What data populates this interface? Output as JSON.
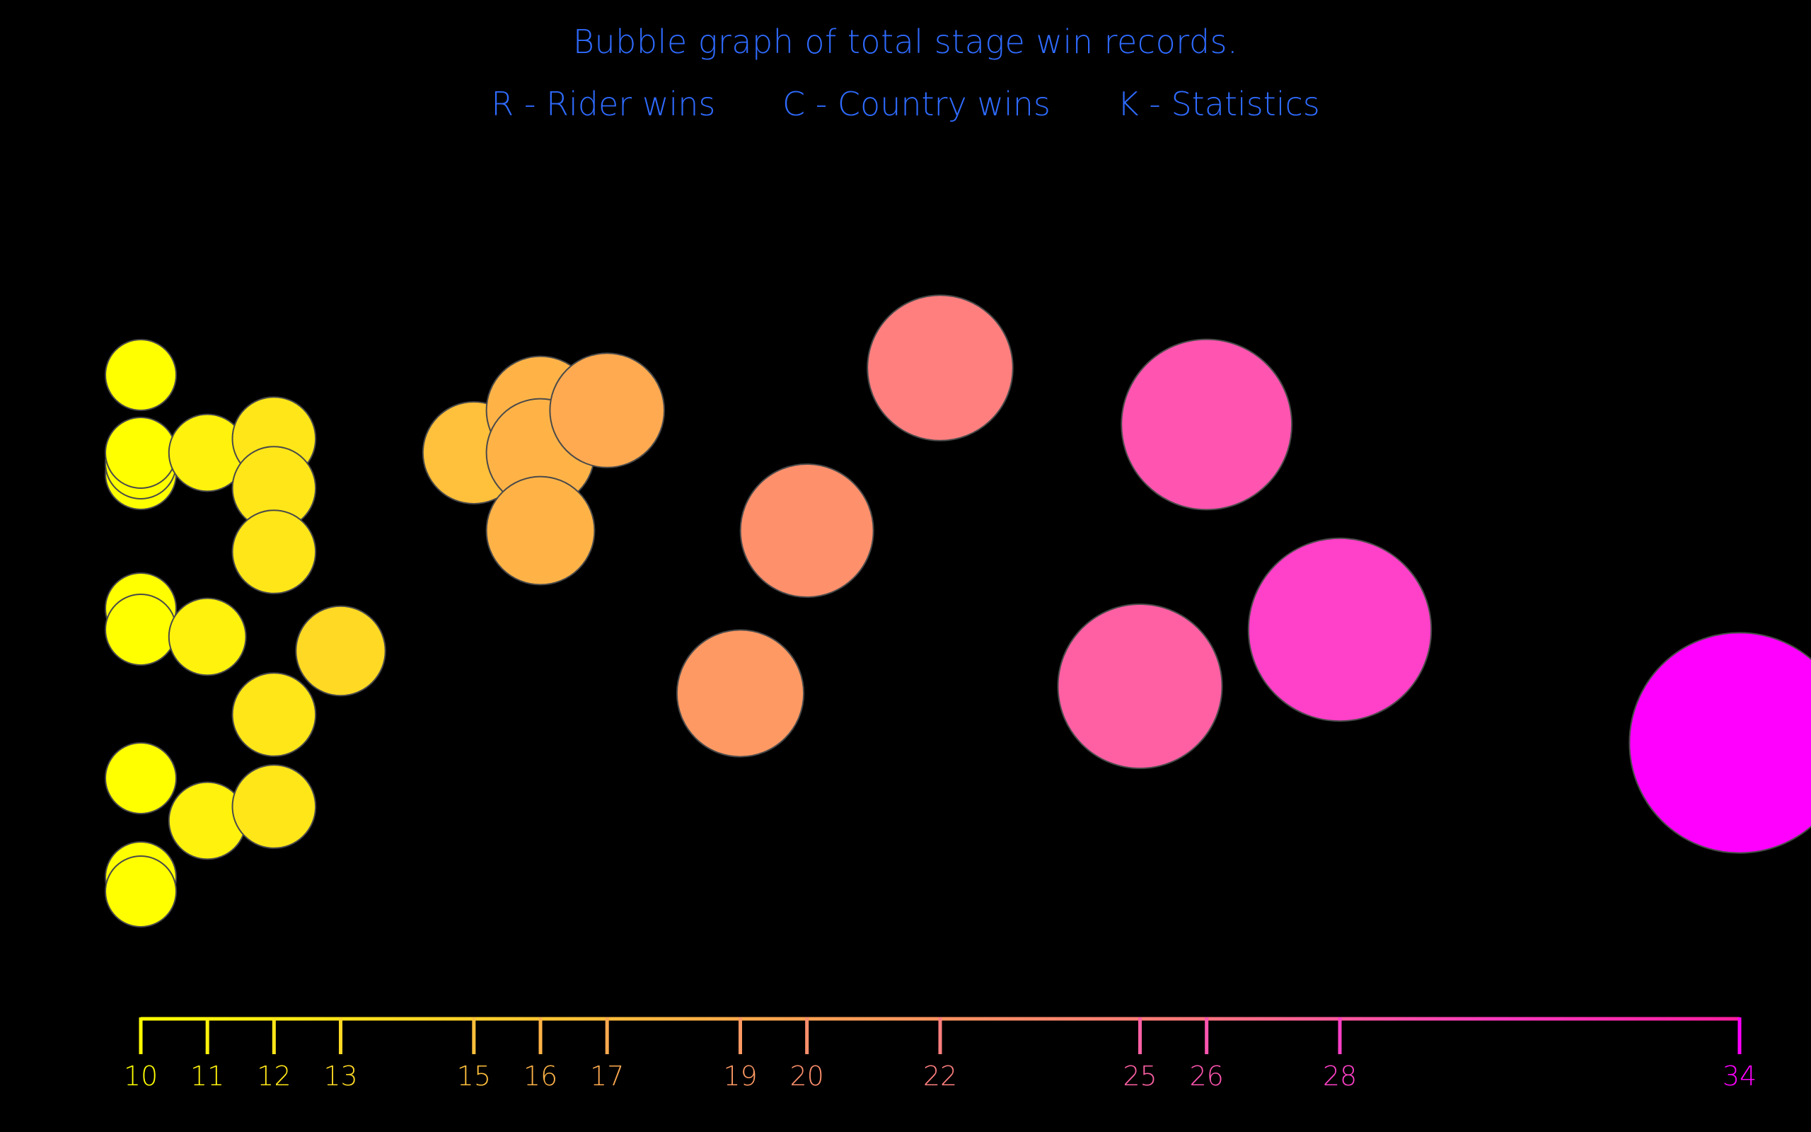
{
  "chart_data": {
    "type": "scatter",
    "title": "Bubble graph of total stage win records.",
    "legend": [
      {
        "key": "R",
        "label": "R - Rider wins"
      },
      {
        "key": "C",
        "label": "C - Country wins"
      },
      {
        "key": "K",
        "label": "K - Statistics"
      }
    ],
    "xlabel": "",
    "ylabel": "",
    "xticks": [
      10,
      11,
      12,
      13,
      15,
      16,
      17,
      19,
      20,
      22,
      25,
      26,
      28,
      34
    ],
    "xlim": [
      10,
      34
    ],
    "color_scale": [
      "#ffff00",
      "#ffb347",
      "#ff7f7f",
      "#ff40c8",
      "#ff00ff"
    ],
    "grid": false,
    "points": [
      {
        "x": 10,
        "y": 0.77
      },
      {
        "x": 10,
        "y": 0.63
      },
      {
        "x": 10,
        "y": 0.645
      },
      {
        "x": 10,
        "y": 0.66
      },
      {
        "x": 10,
        "y": 0.44
      },
      {
        "x": 10,
        "y": 0.41
      },
      {
        "x": 10,
        "y": 0.2
      },
      {
        "x": 10,
        "y": 0.06
      },
      {
        "x": 10,
        "y": 0.04
      },
      {
        "x": 11,
        "y": 0.66
      },
      {
        "x": 11,
        "y": 0.4
      },
      {
        "x": 11,
        "y": 0.14
      },
      {
        "x": 12,
        "y": 0.68
      },
      {
        "x": 12,
        "y": 0.61
      },
      {
        "x": 12,
        "y": 0.52
      },
      {
        "x": 12,
        "y": 0.29
      },
      {
        "x": 12,
        "y": 0.16
      },
      {
        "x": 13,
        "y": 0.38
      },
      {
        "x": 15,
        "y": 0.66
      },
      {
        "x": 16,
        "y": 0.72
      },
      {
        "x": 16,
        "y": 0.66
      },
      {
        "x": 16,
        "y": 0.55
      },
      {
        "x": 17,
        "y": 0.72
      },
      {
        "x": 19,
        "y": 0.32
      },
      {
        "x": 20,
        "y": 0.55
      },
      {
        "x": 22,
        "y": 0.78
      },
      {
        "x": 25,
        "y": 0.33
      },
      {
        "x": 26,
        "y": 0.7
      },
      {
        "x": 28,
        "y": 0.41
      },
      {
        "x": 34,
        "y": 0.25
      }
    ]
  }
}
